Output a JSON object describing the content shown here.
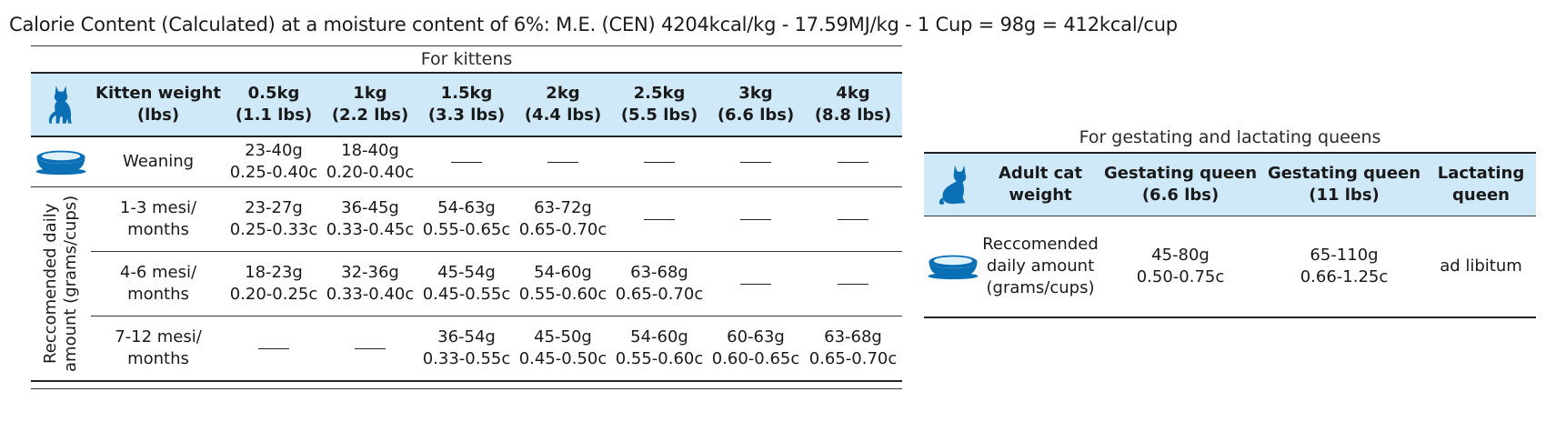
{
  "headline": "Calorie Content (Calculated) at a moisture content of 6%: M.E. (CEN) 4204kcal/kg - 17.59MJ/kg - 1 Cup = 98g = 412kcal/cup",
  "icons": {
    "cat": "cat-icon",
    "bowl": "food-bowl-icon",
    "accent_color": "#0b6fb5",
    "header_bg": "#cfe9f8"
  },
  "kittens": {
    "caption": "For kittens",
    "side_label": "Reccomended daily amount (grams/cups)",
    "headers": [
      [
        "Kitten weight",
        "(lbs)"
      ],
      [
        "0.5kg",
        "(1.1 lbs)"
      ],
      [
        "1kg",
        "(2.2 lbs)"
      ],
      [
        "1.5kg",
        "(3.3 lbs)"
      ],
      [
        "2kg",
        "(4.4 lbs)"
      ],
      [
        "2.5kg",
        "(5.5 lbs)"
      ],
      [
        "3kg",
        "(6.6 lbs)"
      ],
      [
        "4kg",
        "(8.8 lbs)"
      ]
    ],
    "rows": [
      {
        "label": [
          "Weaning"
        ],
        "cells": [
          [
            "23-40g",
            "0.25-0.40c"
          ],
          [
            "18-40g",
            "0.20-0.40c"
          ],
          null,
          null,
          null,
          null,
          null
        ]
      },
      {
        "label": [
          "1-3 mesi/",
          "months"
        ],
        "cells": [
          [
            "23-27g",
            "0.25-0.33c"
          ],
          [
            "36-45g",
            "0.33-0.45c"
          ],
          [
            "54-63g",
            "0.55-0.65c"
          ],
          [
            "63-72g",
            "0.65-0.70c"
          ],
          null,
          null,
          null
        ]
      },
      {
        "label": [
          "4-6 mesi/",
          "months"
        ],
        "cells": [
          [
            "18-23g",
            "0.20-0.25c"
          ],
          [
            "32-36g",
            "0.33-0.40c"
          ],
          [
            "45-54g",
            "0.45-0.55c"
          ],
          [
            "54-60g",
            "0.55-0.60c"
          ],
          [
            "63-68g",
            "0.65-0.70c"
          ],
          null,
          null
        ]
      },
      {
        "label": [
          "7-12 mesi/",
          "months"
        ],
        "cells": [
          null,
          null,
          [
            "36-54g",
            "0.33-0.55c"
          ],
          [
            "45-50g",
            "0.45-0.50c"
          ],
          [
            "54-60g",
            "0.55-0.60c"
          ],
          [
            "60-63g",
            "0.60-0.65c"
          ],
          [
            "63-68g",
            "0.65-0.70c"
          ]
        ]
      }
    ]
  },
  "queens": {
    "caption": "For gestating and lactating queens",
    "headers": [
      [
        "Adult cat",
        "weight"
      ],
      [
        "Gestating queen",
        "(6.6 lbs)"
      ],
      [
        "Gestating queen",
        "(11 lbs)"
      ],
      [
        "Lactating",
        "queen"
      ]
    ],
    "row": {
      "label": [
        "Reccomended",
        "daily amount",
        "(grams/cups)"
      ],
      "cells": [
        [
          "45-80g",
          "0.50-0.75c"
        ],
        [
          "65-110g",
          "0.66-1.25c"
        ],
        [
          "ad libitum"
        ]
      ]
    }
  }
}
